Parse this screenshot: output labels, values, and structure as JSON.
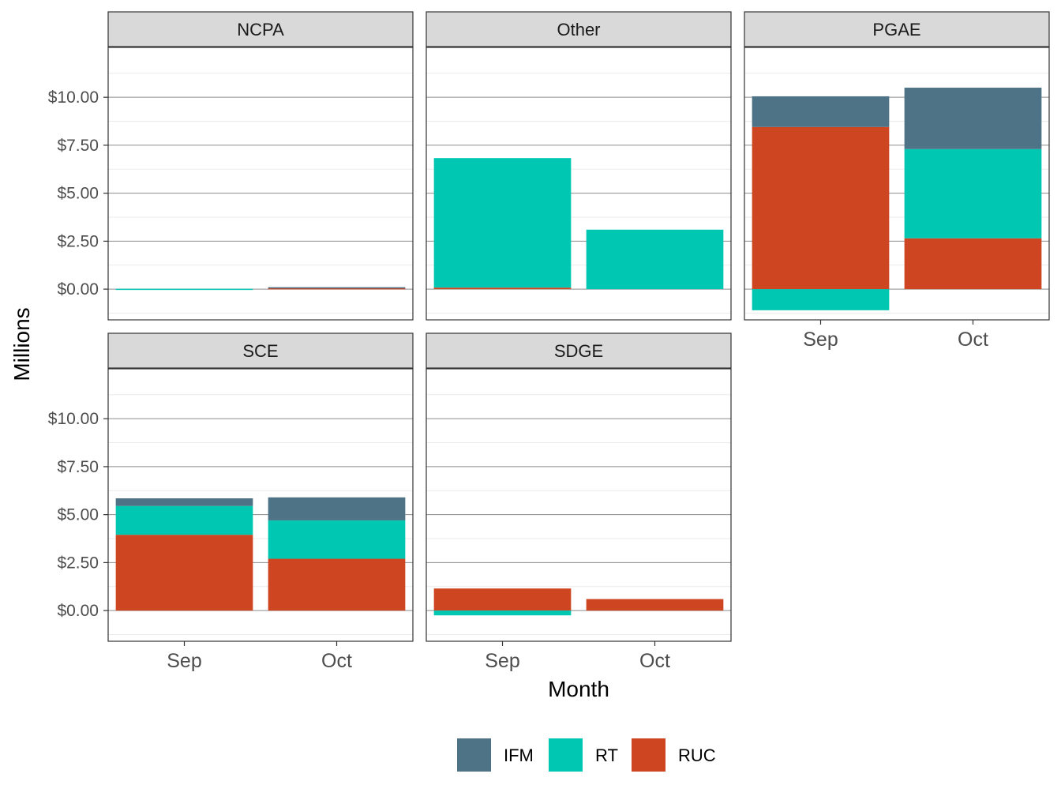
{
  "chart_data": {
    "type": "bar",
    "stacked": true,
    "xlabel": "Month",
    "ylabel": "Millions",
    "categories": [
      "Sep",
      "Oct"
    ],
    "ylim": [
      -1.6,
      12.6
    ],
    "yticks": [
      0,
      2.5,
      5,
      7.5,
      10
    ],
    "ytick_labels": [
      "$0.00",
      "$2.50",
      "$5.00",
      "$7.50",
      "$10.00"
    ],
    "grid": true,
    "legend_position": "bottom",
    "legend": [
      {
        "name": "IFM",
        "color": "#4E7387"
      },
      {
        "name": "RT",
        "color": "#00C7B2"
      },
      {
        "name": "RUC",
        "color": "#CE4621"
      }
    ],
    "panels": [
      {
        "title": "NCPA",
        "bars": {
          "Sep": {
            "IFM": 0.0,
            "RT": 0.02,
            "RUC": 0.0
          },
          "Oct": {
            "IFM": 0.05,
            "RT": 0.0,
            "RUC": 0.05
          }
        }
      },
      {
        "title": "Other",
        "bars": {
          "Sep": {
            "IFM": 0.0,
            "RT": 6.75,
            "RUC": 0.08
          },
          "Oct": {
            "IFM": 0.0,
            "RT": 3.1,
            "RUC": 0.0
          }
        }
      },
      {
        "title": "PGAE",
        "bars": {
          "Sep": {
            "IFM": 1.6,
            "RT": -1.1,
            "RUC": 8.45
          },
          "Oct": {
            "IFM": 3.2,
            "RT": 4.65,
            "RUC": 2.65
          }
        }
      },
      {
        "title": "SCE",
        "bars": {
          "Sep": {
            "IFM": 0.4,
            "RT": 1.5,
            "RUC": 3.95
          },
          "Oct": {
            "IFM": 1.2,
            "RT": 2.0,
            "RUC": 2.7
          }
        }
      },
      {
        "title": "SDGE",
        "bars": {
          "Sep": {
            "IFM": 0.0,
            "RT": -0.25,
            "RUC": 1.15
          },
          "Oct": {
            "IFM": 0.0,
            "RT": 0.0,
            "RUC": 0.6
          }
        }
      }
    ]
  }
}
